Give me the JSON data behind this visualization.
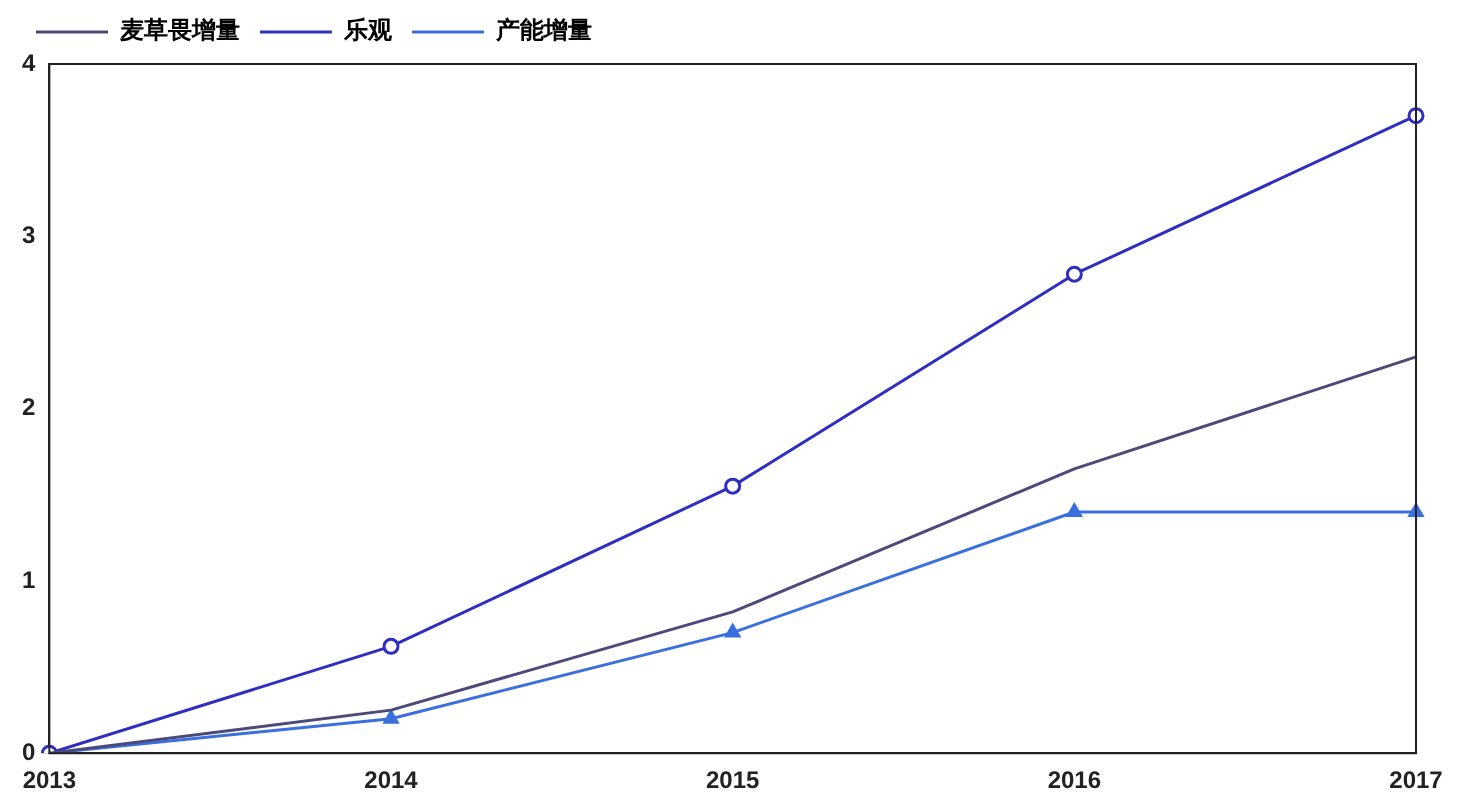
{
  "chart_data": {
    "type": "line",
    "categories": [
      "2013",
      "2014",
      "2015",
      "2016",
      "2017"
    ],
    "series": [
      {
        "name": "麦草畏增量",
        "color": "#4b4a7a",
        "marker": "none",
        "values": [
          0,
          0.25,
          0.82,
          1.65,
          2.3
        ]
      },
      {
        "name": "乐观",
        "color": "#2e2ec0",
        "marker": "circle",
        "values": [
          0,
          0.62,
          1.55,
          2.78,
          3.7
        ]
      },
      {
        "name": "产能增量",
        "color": "#3a6fe0",
        "marker": "triangle",
        "values": [
          0,
          0.2,
          0.7,
          1.4,
          1.4
        ]
      }
    ],
    "ylim": [
      0,
      4
    ],
    "yticks": [
      0,
      1,
      2,
      3,
      4
    ],
    "grid": false,
    "legend": "top left",
    "line_style": "solid"
  }
}
